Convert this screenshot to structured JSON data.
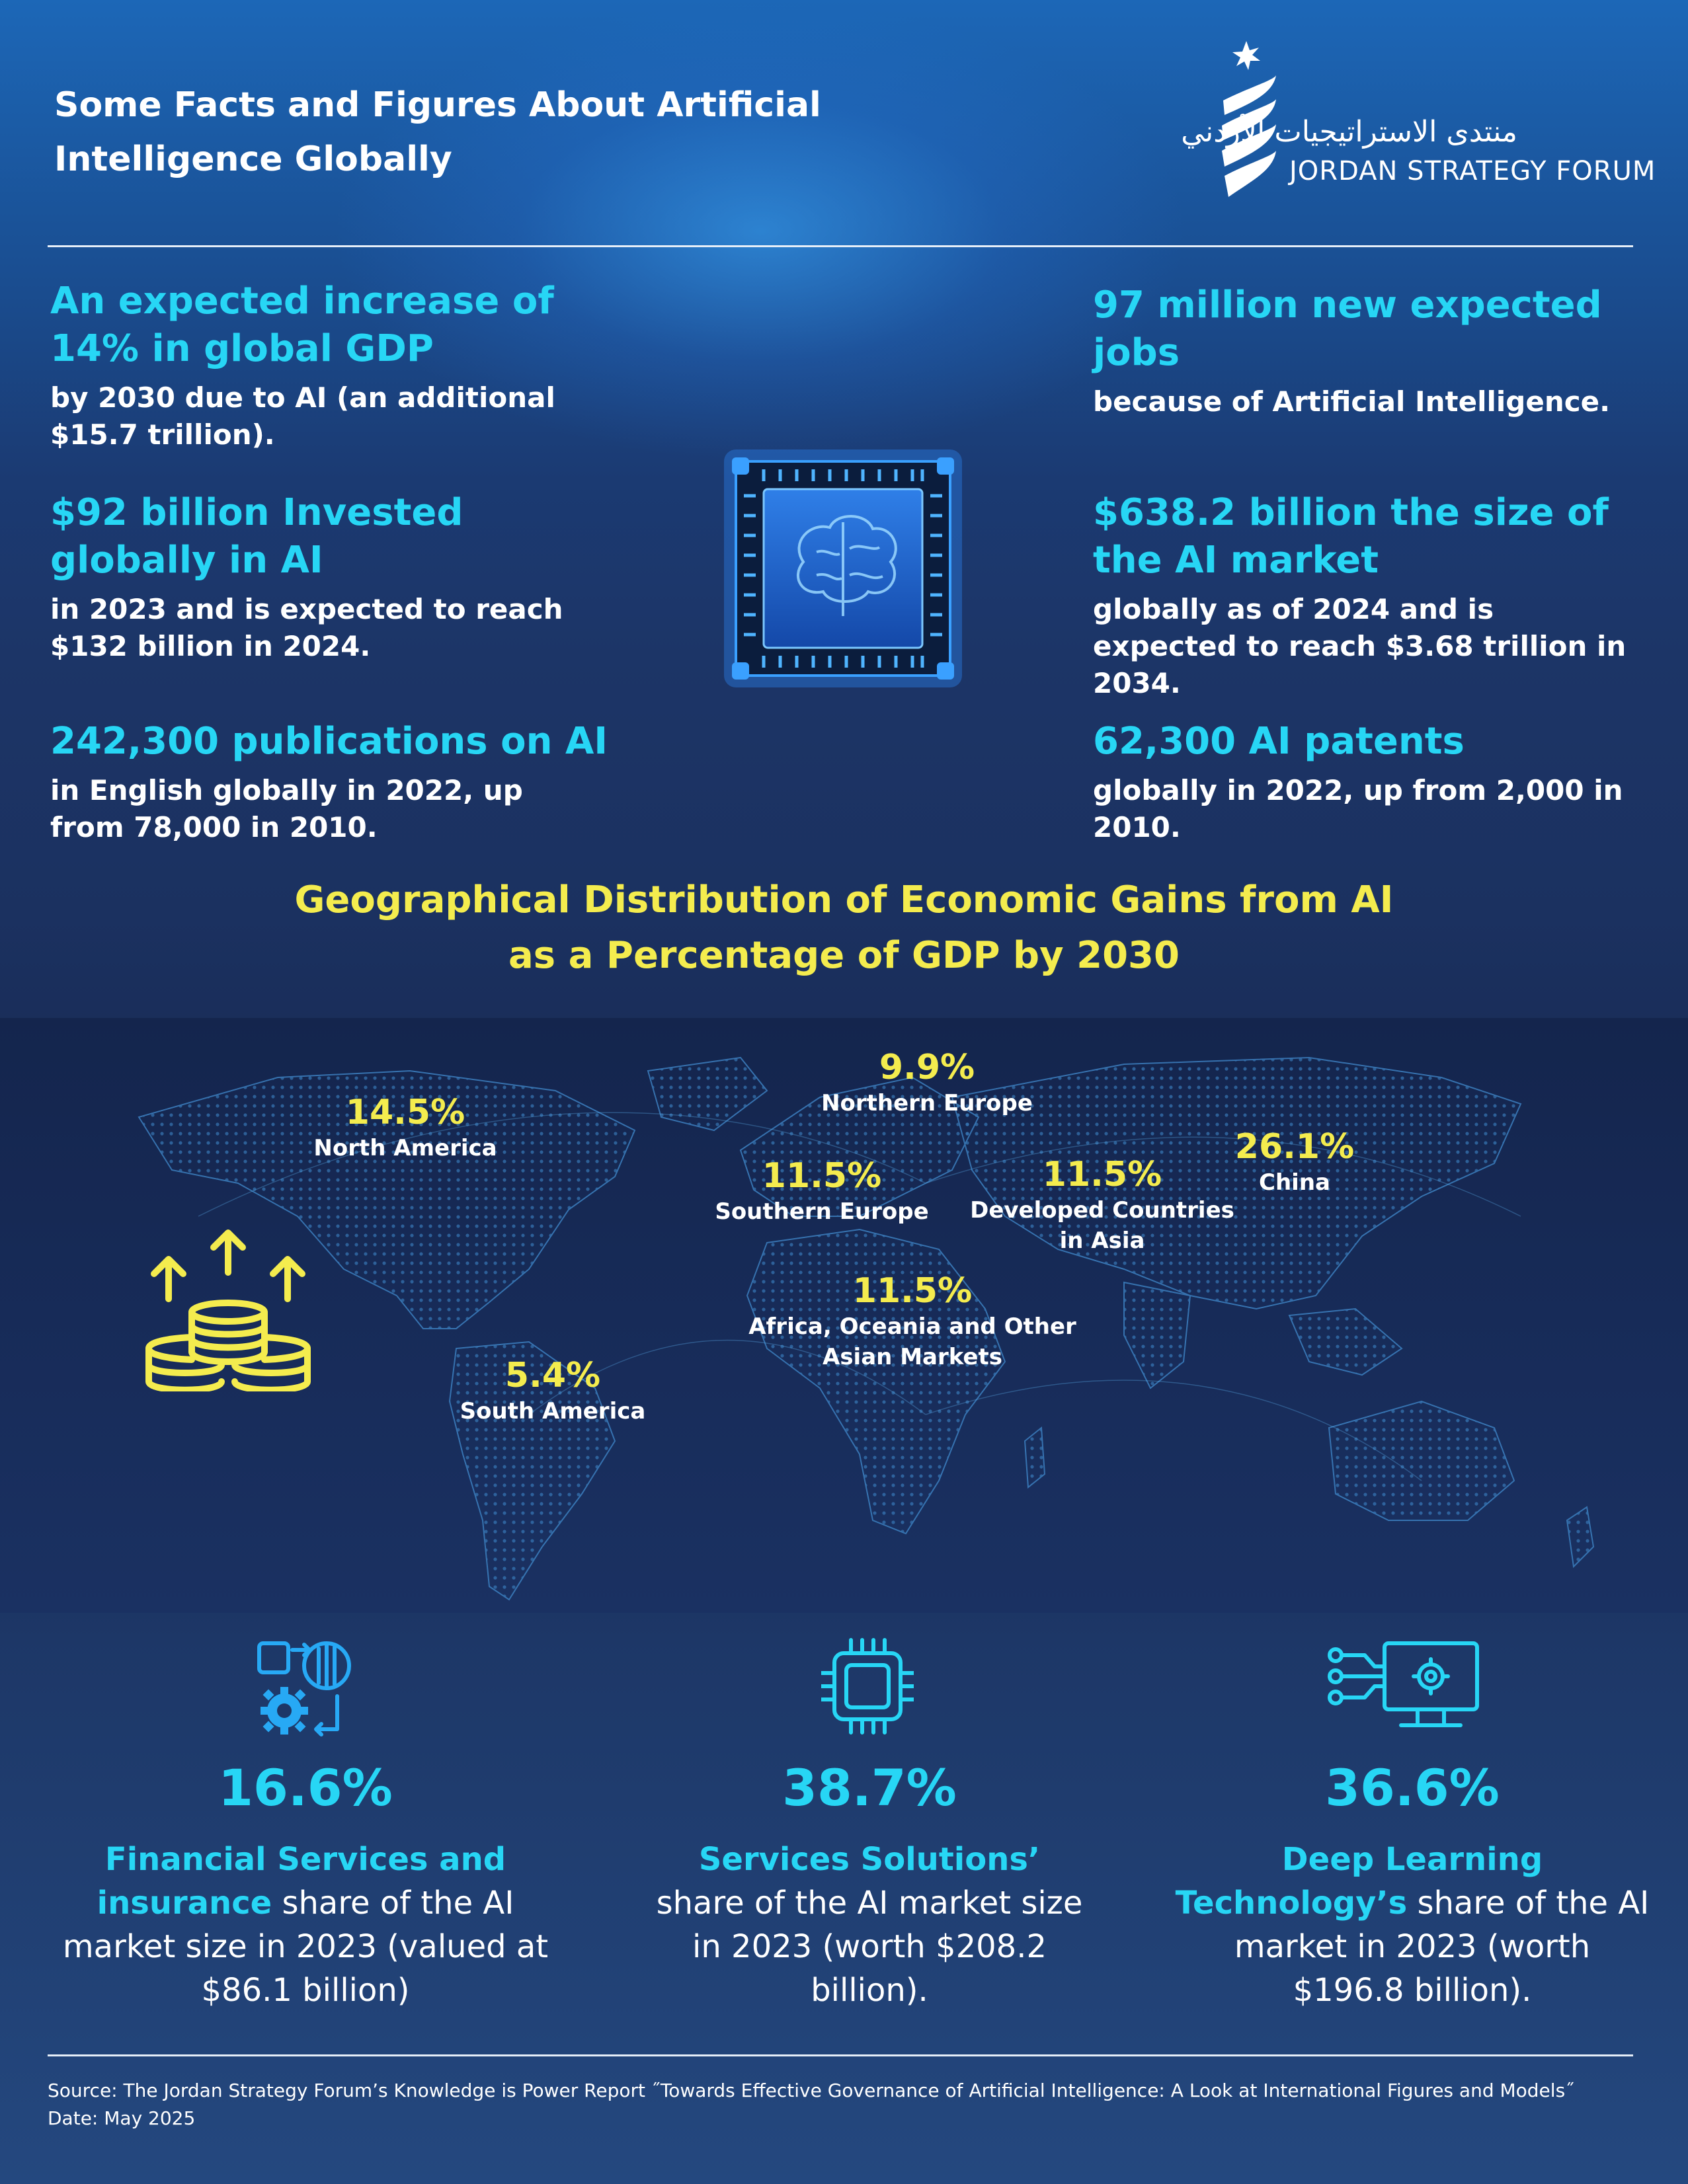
{
  "header": {
    "title_line1": "Some Facts and Figures About Artificial",
    "title_line2": "Intelligence Globally"
  },
  "logo": {
    "arabic": "منتدى الاستراتيجيات الأردني",
    "english": "JORDAN STRATEGY FORUM"
  },
  "facts": [
    {
      "headline": "An expected increase of 14% in global GDP",
      "body": "by 2030 due to AI (an additional $15.7 trillion)."
    },
    {
      "headline": "97 million new expected jobs",
      "body": "because of Artificial Intelligence."
    },
    {
      "headline": "$92 billion Invested globally in AI",
      "body": "in 2023 and is expected to reach $132 billion in 2024."
    },
    {
      "headline": "$638.2 billion the size of the AI market",
      "body": "globally as of 2024 and is expected to reach $3.68 trillion in 2034."
    },
    {
      "headline": "242,300 publications on AI",
      "body": "in English globally in 2022, up from 78,000 in 2010."
    },
    {
      "headline": "62,300 AI patents",
      "body": "globally in 2022, up from 2,000 in 2010."
    }
  ],
  "geo": {
    "title_line1": "Geographical Distribution of Economic Gains from AI",
    "title_line2": "as a Percentage of GDP by 2030",
    "regions": [
      {
        "value": "14.5%",
        "name": "North America",
        "name2": ""
      },
      {
        "value": "9.9%",
        "name": "Northern Europe",
        "name2": ""
      },
      {
        "value": "26.1%",
        "name": "China",
        "name2": ""
      },
      {
        "value": "11.5%",
        "name": "Southern Europe",
        "name2": ""
      },
      {
        "value": "11.5%",
        "name": "Developed Countries",
        "name2": "in Asia"
      },
      {
        "value": "11.5%",
        "name": "Africa, Oceania and Other",
        "name2": "Asian Markets"
      },
      {
        "value": "5.4%",
        "name": "South America",
        "name2": ""
      }
    ]
  },
  "stats": [
    {
      "pct": "16.6%",
      "hl": "Financial Services and insurance",
      "rest": " share of the AI market size in 2023 (valued at $86.1 billion)",
      "icon": "finance-gear-icon"
    },
    {
      "pct": "38.7%",
      "hl": "Services Solutions’",
      "rest": " share of the AI market size in 2023 (worth $208.2 billion).",
      "icon": "chip-icon"
    },
    {
      "pct": "36.6%",
      "hl": "Deep Learning Technology’s",
      "rest": " share of the AI market in 2023 (worth $196.8 billion).",
      "icon": "monitor-gear-icon"
    }
  ],
  "source": {
    "line1": "Source: The Jordan Strategy Forum’s Knowledge is Power Report ˝Towards Effective Governance of Artificial Intelligence: A Look at International Figures and Models˝",
    "line2": "Date: May 2025"
  },
  "colors": {
    "accent": "#27d6f5",
    "highlight": "#f4ec4e",
    "text": "#ffffff"
  }
}
